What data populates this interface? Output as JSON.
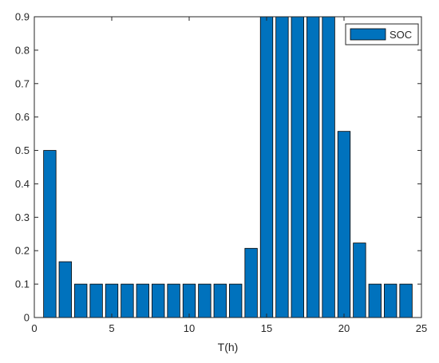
{
  "chart_data": {
    "type": "bar",
    "x": [
      1,
      2,
      3,
      4,
      5,
      6,
      7,
      8,
      9,
      10,
      11,
      12,
      13,
      14,
      15,
      16,
      17,
      18,
      19,
      20,
      21,
      22,
      23,
      24
    ],
    "series": [
      {
        "name": "SOC",
        "values": [
          0.5,
          0.167,
          0.1,
          0.1,
          0.1,
          0.1,
          0.1,
          0.1,
          0.1,
          0.1,
          0.1,
          0.1,
          0.1,
          0.207,
          0.9,
          0.9,
          0.9,
          0.9,
          0.9,
          0.557,
          0.223,
          0.1,
          0.1,
          0.1
        ],
        "color": "#0072BD"
      }
    ],
    "xlabel": "T(h)",
    "ylabel": "",
    "title": "",
    "xlim": [
      0,
      25
    ],
    "ylim": [
      0,
      0.9
    ],
    "xticks": [
      0,
      5,
      10,
      15,
      20,
      25
    ],
    "yticks": [
      0,
      0.1,
      0.2,
      0.3,
      0.4,
      0.5,
      0.6,
      0.7,
      0.8,
      0.9
    ],
    "xtick_labels": [
      "0",
      "5",
      "10",
      "15",
      "20",
      "25"
    ],
    "ytick_labels": [
      "0",
      "0.1",
      "0.2",
      "0.3",
      "0.4",
      "0.5",
      "0.6",
      "0.7",
      "0.8",
      "0.9"
    ],
    "grid": false,
    "legend": {
      "position": "top-right",
      "entries": [
        "SOC"
      ]
    },
    "bar_color": "#0072BD",
    "edge_color": "#000000"
  }
}
